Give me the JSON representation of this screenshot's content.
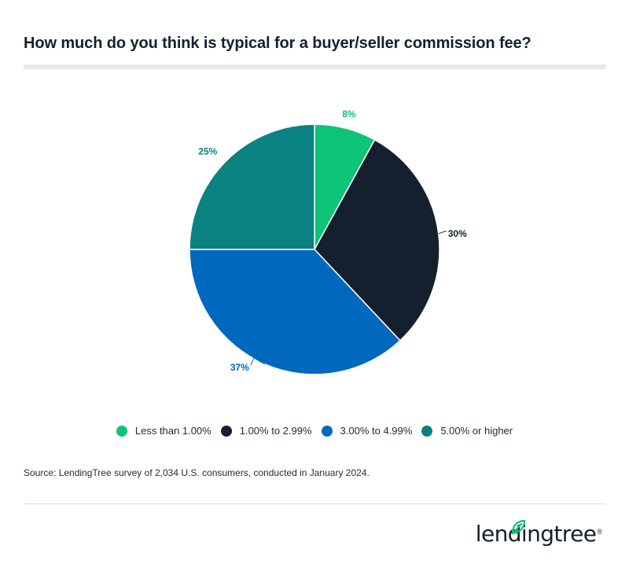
{
  "header": {
    "title": "How much do you think is typical for a buyer/seller commission fee?"
  },
  "chart_data": {
    "type": "pie",
    "categories": [
      "Less than 1.00%",
      "1.00% to 2.99%",
      "3.00% to 4.99%",
      "5.00% or higher"
    ],
    "values": [
      8,
      30,
      37,
      25
    ],
    "data_labels": [
      "8%",
      "30%",
      "37%",
      "25%"
    ],
    "colors": [
      "#0ec477",
      "#15202e",
      "#0068bd",
      "#0a8282"
    ],
    "legend_position": "bottom",
    "start_angle": "12 o'clock",
    "direction": "clockwise"
  },
  "legend": {
    "items": [
      {
        "label": "Less than 1.00%",
        "color": "#0ec477"
      },
      {
        "label": "1.00% to 2.99%",
        "color": "#15202e"
      },
      {
        "label": "3.00% to 4.99%",
        "color": "#0068bd"
      },
      {
        "label": "5.00% or higher",
        "color": "#0a8282"
      }
    ]
  },
  "footer": {
    "source": "Source: LendingTree survey of 2,034 U.S. consumers, conducted in January 2024.",
    "logo_text": "lendingtree",
    "logo_mark": "®",
    "logo_icon": "leaf-icon",
    "logo_color": "#0ec477"
  }
}
